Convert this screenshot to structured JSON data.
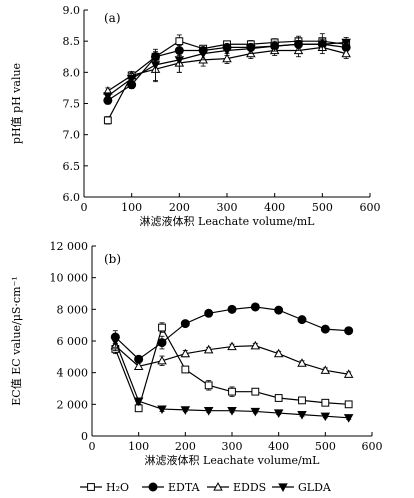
{
  "legend": [
    "H₂O",
    "EDTA",
    "EDDS",
    "GLDA"
  ],
  "chart_data": [
    {
      "type": "line",
      "panel_label": "(a)",
      "xlabel": "淋滤液体积 Leachate volume/mL",
      "ylabel": "pH值 pH value",
      "xlim": [
        0,
        600
      ],
      "ylim": [
        6.0,
        9.0
      ],
      "xticks": [
        "0",
        "100",
        "200",
        "300",
        "400",
        "500",
        "600"
      ],
      "yticks": [
        "6.0",
        "6.5",
        "7.0",
        "7.5",
        "8.0",
        "8.5",
        "9.0"
      ],
      "x": [
        50,
        100,
        150,
        200,
        250,
        300,
        350,
        400,
        450,
        500,
        550
      ],
      "series": [
        {
          "name": "H₂O",
          "marker": "square-open",
          "values": [
            7.23,
            7.95,
            8.25,
            8.5,
            8.38,
            8.45,
            8.45,
            8.48,
            8.5,
            8.5,
            8.45
          ],
          "err": [
            0.06,
            0.06,
            0.08,
            0.1,
            0.05,
            0.05,
            0.06,
            0.06,
            0.08,
            0.12,
            0.06
          ]
        },
        {
          "name": "EDTA",
          "marker": "circle-filled",
          "values": [
            7.55,
            7.8,
            8.25,
            8.35,
            8.35,
            8.4,
            8.4,
            8.42,
            8.45,
            8.45,
            8.4
          ],
          "err": [
            0.06,
            0.06,
            0.08,
            0.08,
            0.05,
            0.05,
            0.05,
            0.06,
            0.06,
            0.08,
            0.06
          ]
        },
        {
          "name": "EDDS",
          "marker": "triangle-up-open",
          "values": [
            7.7,
            7.95,
            8.05,
            8.15,
            8.2,
            8.22,
            8.3,
            8.35,
            8.35,
            8.4,
            8.3
          ],
          "err": [
            0.05,
            0.06,
            0.2,
            0.15,
            0.1,
            0.08,
            0.08,
            0.08,
            0.1,
            0.1,
            0.08
          ]
        },
        {
          "name": "GLDA",
          "marker": "triangle-down-filled",
          "values": [
            7.62,
            7.9,
            8.12,
            8.2,
            8.3,
            8.35,
            8.38,
            8.42,
            8.45,
            8.45,
            8.48
          ],
          "err": [
            0.05,
            0.08,
            0.25,
            0.2,
            0.1,
            0.08,
            0.08,
            0.08,
            0.1,
            0.1,
            0.08
          ]
        }
      ]
    },
    {
      "type": "line",
      "panel_label": "(b)",
      "xlabel": "淋滤液体积 Leachate volume/mL",
      "ylabel": "EC值 EC value/μS·cm⁻¹",
      "xlim": [
        0,
        600
      ],
      "ylim": [
        0,
        12000
      ],
      "xticks": [
        "0",
        "100",
        "200",
        "300",
        "400",
        "500",
        "600"
      ],
      "yticks": [
        "0",
        "2 000",
        "4 000",
        "6 000",
        "8 000",
        "10 000",
        "12 000"
      ],
      "x": [
        50,
        100,
        150,
        200,
        250,
        300,
        350,
        400,
        450,
        500,
        550
      ],
      "series": [
        {
          "name": "H₂O",
          "marker": "square-open",
          "values": [
            5500,
            1750,
            6850,
            4200,
            3200,
            2800,
            2800,
            2400,
            2250,
            2100,
            2000
          ],
          "err": [
            300,
            150,
            300,
            200,
            300,
            300,
            200,
            150,
            150,
            150,
            150
          ]
        },
        {
          "name": "EDTA",
          "marker": "circle-filled",
          "values": [
            6250,
            4850,
            5900,
            7100,
            7750,
            8000,
            8150,
            7950,
            7350,
            6750,
            6650
          ],
          "err": [
            400,
            200,
            400,
            200,
            150,
            150,
            150,
            150,
            150,
            150,
            150
          ]
        },
        {
          "name": "EDDS",
          "marker": "triangle-up-open",
          "values": [
            5700,
            4400,
            4750,
            5200,
            5450,
            5650,
            5700,
            5200,
            4600,
            4150,
            3900
          ],
          "err": [
            300,
            200,
            300,
            200,
            150,
            150,
            150,
            150,
            150,
            150,
            150
          ]
        },
        {
          "name": "GLDA",
          "marker": "triangle-down-filled",
          "values": [
            6000,
            2200,
            1700,
            1650,
            1600,
            1600,
            1550,
            1450,
            1350,
            1250,
            1150
          ],
          "err": [
            400,
            200,
            150,
            100,
            100,
            100,
            100,
            100,
            100,
            100,
            100
          ]
        }
      ]
    }
  ]
}
